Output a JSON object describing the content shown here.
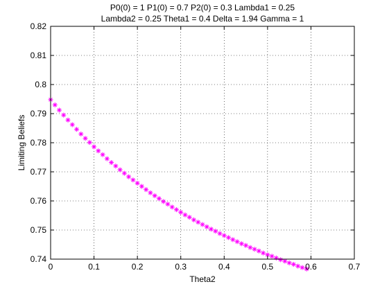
{
  "chart_data": {
    "type": "scatter",
    "title_line1": "P0(0) = 1 P1(0) = 0.7 P2(0) = 0.3 Lambda1 = 0.25",
    "title_line2": "Lambda2 = 0.25 Theta1 = 0.4 Delta = 1.94 Gamma = 1",
    "xlabel": "Theta2",
    "ylabel": "Limiting Beliefs",
    "xlim": [
      0,
      0.7
    ],
    "ylim": [
      0.74,
      0.82
    ],
    "xticks": [
      "0",
      "0.1",
      "0.2",
      "0.3",
      "0.4",
      "0.5",
      "0.6",
      "0.7"
    ],
    "yticks": [
      "0.74",
      "0.75",
      "0.76",
      "0.77",
      "0.78",
      "0.79",
      "0.8",
      "0.81",
      "0.82"
    ],
    "grid": true,
    "marker": "*",
    "color": "#ff00ff",
    "series": [
      {
        "x": [
          0.0,
          0.01,
          0.02,
          0.03,
          0.04,
          0.05,
          0.06,
          0.07,
          0.08,
          0.09,
          0.1,
          0.11,
          0.12,
          0.13,
          0.14,
          0.15,
          0.16,
          0.17,
          0.18,
          0.19,
          0.2,
          0.21,
          0.22,
          0.23,
          0.24,
          0.25,
          0.26,
          0.27,
          0.28,
          0.29,
          0.3,
          0.31,
          0.32,
          0.33,
          0.34,
          0.35,
          0.36,
          0.37,
          0.38,
          0.39,
          0.4,
          0.41,
          0.42,
          0.43,
          0.44,
          0.45,
          0.46,
          0.47,
          0.48,
          0.49,
          0.5,
          0.51,
          0.52,
          0.53,
          0.54,
          0.55,
          0.56,
          0.57,
          0.58,
          0.59
        ],
        "y": [
          0.7948,
          0.793,
          0.7912,
          0.7895,
          0.7878,
          0.7862,
          0.7846,
          0.783,
          0.7815,
          0.7801,
          0.7786,
          0.7772,
          0.7759,
          0.7745,
          0.7732,
          0.772,
          0.7707,
          0.7695,
          0.7683,
          0.7672,
          0.7661,
          0.765,
          0.7639,
          0.7628,
          0.7618,
          0.7608,
          0.7598,
          0.7589,
          0.7579,
          0.757,
          0.7561,
          0.7552,
          0.7544,
          0.7535,
          0.7527,
          0.7519,
          0.7511,
          0.7503,
          0.7496,
          0.7488,
          0.7481,
          0.7474,
          0.7467,
          0.746,
          0.7453,
          0.7447,
          0.744,
          0.7434,
          0.7428,
          0.7421,
          0.7415,
          0.741,
          0.7404,
          0.7398,
          0.7393,
          0.7387,
          0.7382,
          0.7376,
          0.7371,
          0.7366
        ]
      }
    ]
  }
}
